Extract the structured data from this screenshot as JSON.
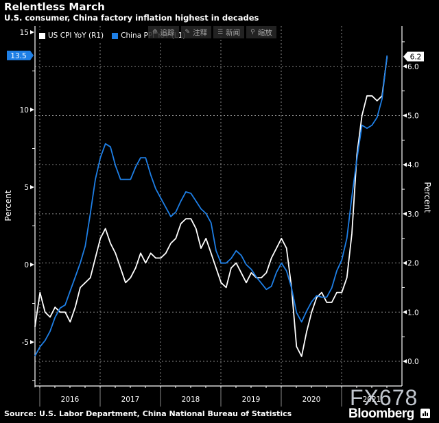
{
  "header": {
    "title": "Relentless March",
    "subtitle": "U.S. consumer, China factory inflation highest in decades"
  },
  "legend": [
    {
      "label": "US CPI YoY  (R1)",
      "color": "#ffffff"
    },
    {
      "label": "China PPI YoY  (L1)",
      "color": "#1e7fe6"
    }
  ],
  "toolbar": [
    {
      "icon": "track-icon",
      "glyph": "⟰",
      "label": "追踪"
    },
    {
      "icon": "annotate-icon",
      "glyph": "✎",
      "label": "注释"
    },
    {
      "icon": "news-icon",
      "glyph": "☰",
      "label": "新闻"
    },
    {
      "icon": "zoom-icon",
      "glyph": "⚲",
      "label": "缩放"
    }
  ],
  "footer": {
    "source": "Source: U.S. Labor Department, China National Bureau of Statistics",
    "brand": "Bloomberg",
    "watermark": "FX678"
  },
  "chart_data": {
    "type": "line",
    "title": "Relentless March",
    "subtitle": "U.S. consumer, China factory inflation highest in decades",
    "x_start": "2015-12",
    "x_end": "2021-10",
    "frequency": "monthly",
    "x_tick_labels": [
      "2016",
      "2017",
      "2018",
      "2019",
      "2020",
      "2021"
    ],
    "left_axis": {
      "label": "Percent",
      "range": [
        -7.7,
        15.5
      ],
      "ticks": [
        15,
        10,
        5,
        0,
        -5
      ],
      "minor_ticks": [
        12.5,
        7.5,
        2.5,
        -2.5,
        -7.5
      ]
    },
    "right_axis": {
      "label": "Percent",
      "range": [
        -0.4,
        6.8
      ],
      "ticks": [
        "6.0",
        "5.0",
        "4.0",
        "3.0",
        "2.0",
        "1.0",
        "0.0"
      ],
      "minor_ticks": [
        6.5,
        5.5,
        4.5,
        3.5,
        2.5,
        1.5,
        0.5
      ]
    },
    "grid": true,
    "legend_position": "top-left",
    "series": [
      {
        "name": "US CPI YoY",
        "axis": "right",
        "color": "#ffffff",
        "last_value_label": "6.2",
        "values": [
          0.7,
          1.4,
          1.0,
          0.9,
          1.1,
          1.0,
          1.0,
          0.8,
          1.1,
          1.5,
          1.6,
          1.7,
          2.1,
          2.5,
          2.7,
          2.4,
          2.2,
          1.9,
          1.6,
          1.7,
          1.9,
          2.2,
          2.0,
          2.2,
          2.1,
          2.1,
          2.2,
          2.4,
          2.5,
          2.8,
          2.9,
          2.9,
          2.7,
          2.3,
          2.5,
          2.2,
          1.9,
          1.6,
          1.5,
          1.9,
          2.0,
          1.8,
          1.6,
          1.8,
          1.7,
          1.7,
          1.8,
          2.1,
          2.3,
          2.5,
          2.3,
          1.5,
          0.3,
          0.1,
          0.6,
          1.0,
          1.3,
          1.4,
          1.2,
          1.2,
          1.4,
          1.4,
          1.7,
          2.6,
          4.2,
          5.0,
          5.4,
          5.4,
          5.3,
          5.4,
          6.2
        ]
      },
      {
        "name": "China PPI YoY",
        "axis": "left",
        "color": "#1e7fe6",
        "last_value_label": "13.5",
        "values": [
          -5.9,
          -5.3,
          -4.9,
          -4.3,
          -3.4,
          -2.8,
          -2.6,
          -1.7,
          -0.8,
          0.1,
          1.2,
          3.3,
          5.5,
          6.9,
          7.8,
          7.6,
          6.4,
          5.5,
          5.5,
          5.5,
          6.3,
          6.9,
          6.9,
          5.8,
          4.9,
          4.3,
          3.7,
          3.1,
          3.4,
          4.1,
          4.7,
          4.6,
          4.1,
          3.6,
          3.3,
          2.7,
          0.9,
          0.1,
          0.1,
          0.4,
          0.9,
          0.6,
          0.0,
          -0.3,
          -0.8,
          -1.2,
          -1.6,
          -1.4,
          -0.5,
          0.1,
          -0.4,
          -1.5,
          -3.1,
          -3.7,
          -3.0,
          -2.4,
          -2.0,
          -2.1,
          -2.1,
          -1.5,
          -0.4,
          0.3,
          1.7,
          4.4,
          6.8,
          9.0,
          8.8,
          9.0,
          9.5,
          10.7,
          13.5
        ]
      }
    ]
  }
}
